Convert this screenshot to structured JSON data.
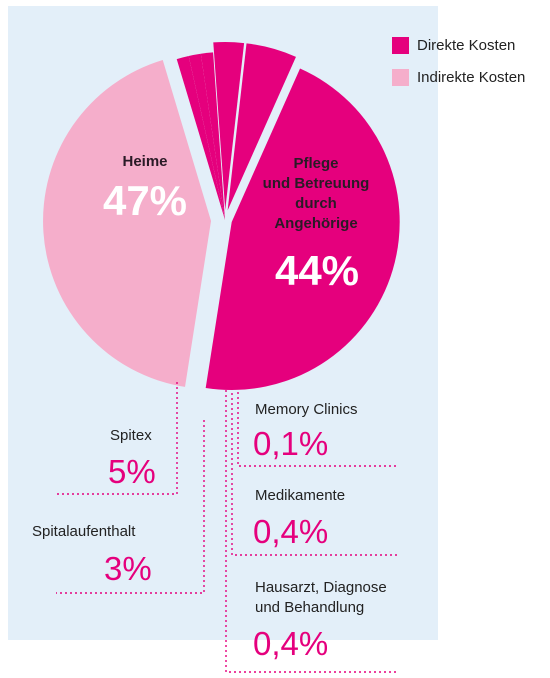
{
  "colors": {
    "direct": "#e5007d",
    "indirect": "#f5aecb",
    "panel": "#e3eff9",
    "leader": "#e5007d"
  },
  "legend": {
    "direct_label": "Direkte Kosten",
    "indirect_label": "Indirekte Kosten"
  },
  "chart_data": {
    "type": "pie",
    "title": "",
    "legend_position": "top-right",
    "slices": [
      {
        "label": "Heime",
        "value": 47,
        "display": "47%",
        "group": "Direkte Kosten"
      },
      {
        "label": "Pflege und Betreuung durch Angehörige",
        "value": 44,
        "display": "44%",
        "group": "Indirekte Kosten"
      },
      {
        "label": "Memory Clinics",
        "value": 0.1,
        "display": "0,1%",
        "group": "Direkte Kosten"
      },
      {
        "label": "Medikamente",
        "value": 0.4,
        "display": "0,4%",
        "group": "Direkte Kosten"
      },
      {
        "label": "Hausarzt, Diagnose und Behandlung",
        "value": 0.4,
        "display": "0,4%",
        "group": "Direkte Kosten"
      },
      {
        "label": "Spitalaufenthalt",
        "value": 3,
        "display": "3%",
        "group": "Direkte Kosten"
      },
      {
        "label": "Spitex",
        "value": 5,
        "display": "5%",
        "group": "Direkte Kosten"
      }
    ]
  },
  "labels": {
    "heime": {
      "name": "Heime",
      "value": "47%"
    },
    "pflege": {
      "name_line1": "Pflege",
      "name_line2": "und Betreuung",
      "name_line3": "durch",
      "name_line4": "Angehörige",
      "value": "44%"
    },
    "spitex": {
      "name": "Spitex",
      "value": "5%"
    },
    "spital": {
      "name": "Spitalaufenthalt",
      "value": "3%"
    },
    "memory": {
      "name": "Memory Clinics",
      "value": "0,1%"
    },
    "medikamente": {
      "name": "Medikamente",
      "value": "0,4%"
    },
    "hausarzt": {
      "name_line1": "Hausarzt, Diagnose",
      "name_line2": "und Behandlung",
      "value": "0,4%"
    }
  }
}
